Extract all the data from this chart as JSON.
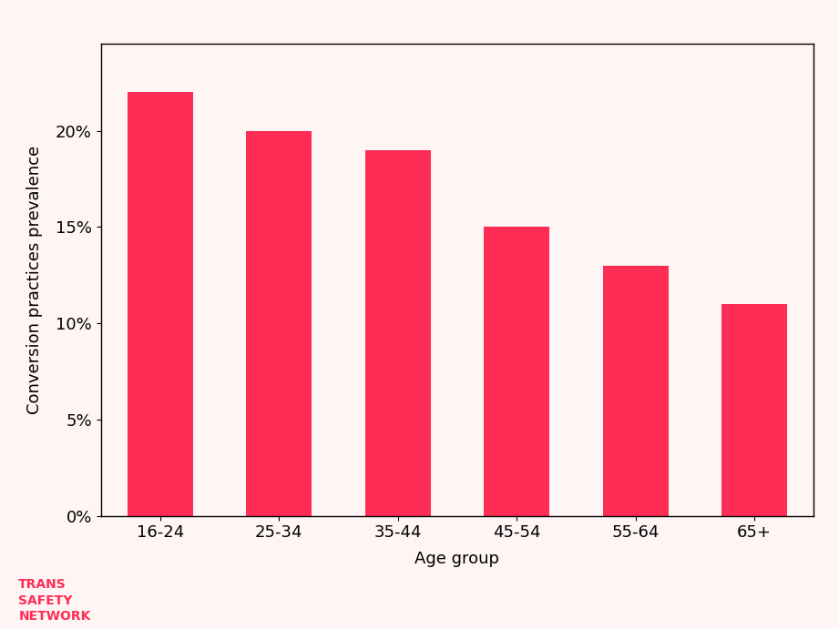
{
  "categories": [
    "16-24",
    "25-34",
    "35-44",
    "45-54",
    "55-64",
    "65+"
  ],
  "values": [
    0.22,
    0.2,
    0.19,
    0.15,
    0.13,
    0.11
  ],
  "bar_color": "#FF2D55",
  "background_color": "#FFF5F5",
  "plot_background_color": "#FFF5F5",
  "xlabel": "Age group",
  "ylabel": "Conversion practices prevalence",
  "ylim": [
    0,
    0.245
  ],
  "yticks": [
    0,
    0.05,
    0.1,
    0.15,
    0.2
  ],
  "xlabel_fontsize": 13,
  "ylabel_fontsize": 13,
  "tick_fontsize": 13,
  "logo_text_lines": [
    "TRANS",
    "SAFETY",
    "NETWORK"
  ],
  "logo_color": "#FF2D55",
  "logo_fontsize": 10,
  "bar_width": 0.55
}
